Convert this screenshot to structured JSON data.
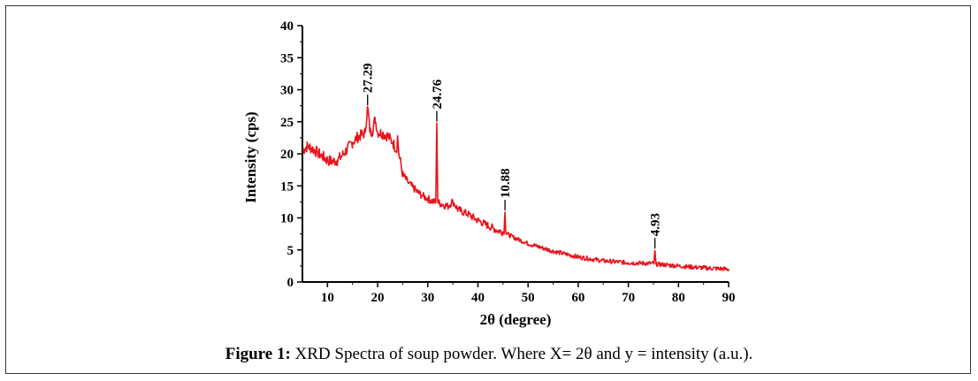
{
  "chart_data": {
    "type": "line",
    "title": "",
    "xlabel": "2θ (degree)",
    "ylabel": "Intensity (cps)",
    "xlim": [
      5,
      90
    ],
    "ylim": [
      0,
      40
    ],
    "xticks": [
      10,
      20,
      30,
      40,
      50,
      60,
      70,
      80,
      90
    ],
    "yticks": [
      0,
      5,
      10,
      15,
      20,
      25,
      30,
      35,
      40
    ],
    "grid": false,
    "series_color": "#e8141c",
    "series": [
      {
        "x": [
          5,
          6,
          7,
          8,
          9,
          10,
          11,
          12,
          13,
          14,
          15,
          16,
          17,
          17.5,
          18,
          18.5,
          19,
          19.5,
          20,
          21,
          22,
          23,
          23.8,
          24,
          24.2,
          25,
          26,
          27,
          28,
          29,
          30,
          31,
          31.6,
          31.8,
          32,
          33,
          34,
          35,
          36,
          38,
          40,
          42,
          44,
          45.2,
          45.4,
          45.6,
          47,
          50,
          55,
          60,
          65,
          70,
          74,
          75.1,
          75.3,
          75.5,
          77,
          80,
          85,
          90
        ],
        "y": [
          20.5,
          21.2,
          20.8,
          20.2,
          19.6,
          19.0,
          18.8,
          19.0,
          19.8,
          20.8,
          21.8,
          22.6,
          23.0,
          23.3,
          27.3,
          23.4,
          23.6,
          25.5,
          23.4,
          23.2,
          22.8,
          21.8,
          20.6,
          22.8,
          20.2,
          16.8,
          15.6,
          14.8,
          14.0,
          13.4,
          13.0,
          12.6,
          12.4,
          24.8,
          12.4,
          12.1,
          11.8,
          12.6,
          11.3,
          10.6,
          9.6,
          8.8,
          8.0,
          7.8,
          10.9,
          7.6,
          7.0,
          6.0,
          4.8,
          3.9,
          3.3,
          3.0,
          2.9,
          2.9,
          4.9,
          2.8,
          2.7,
          2.5,
          2.2,
          2.0
        ]
      }
    ],
    "annotations": [
      {
        "x": 18,
        "y": 27.29,
        "text": "27.29"
      },
      {
        "x": 31.8,
        "y": 24.76,
        "text": "24.76"
      },
      {
        "x": 45.4,
        "y": 10.88,
        "text": "10.88"
      },
      {
        "x": 75.3,
        "y": 4.93,
        "text": "4.93"
      }
    ]
  },
  "caption": {
    "label": "Figure 1:",
    "text": " XRD Spectra of soup powder. Where X= 2θ and y = intensity (a.u.)."
  }
}
